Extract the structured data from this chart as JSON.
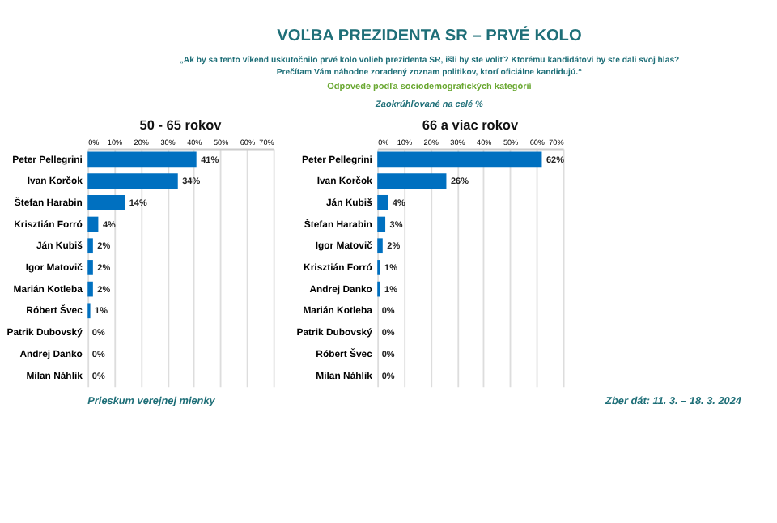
{
  "chart_data": [
    {
      "type": "bar",
      "orientation": "horizontal",
      "title": "50 - 65 rokov",
      "annotations": [
        "VOĽBA PREZIDENTA SR – PRVÉ KOLO",
        "„Ak by sa tento víkend uskutočnilo prvé kolo volieb prezidenta SR, išli by ste voliť? Ktorému kandidátovi by ste dali svoj hlas?",
        "Prečítam Vám náhodne zoradený zoznam politikov, ktorí oficiálne kandidujú.“",
        "Odpovede podľa sociodemografických kategórií",
        "Zaokrúhľované na celé %"
      ],
      "categories": [
        "Peter Pellegrini",
        "Ivan Korčok",
        "Štefan Harabin",
        "Krisztián Forró",
        "Ján Kubiš",
        "Igor Matovič",
        "Marián Kotleba",
        "Róbert Švec",
        "Patrik Dubovský",
        "Andrej Danko",
        "Milan Náhlik"
      ],
      "values": [
        41,
        34,
        14,
        4,
        2,
        2,
        2,
        1,
        0,
        0,
        0
      ],
      "value_labels": [
        "41%",
        "34%",
        "14%",
        "4%",
        "2%",
        "2%",
        "2%",
        "1%",
        "0%",
        "0%",
        "0%"
      ],
      "color": "#0070c0",
      "xlim": [
        0,
        70
      ],
      "xticks": [
        {
          "value": 0,
          "label": "0%"
        },
        {
          "value": 10,
          "label": "10%"
        },
        {
          "value": 20,
          "label": "20%"
        },
        {
          "value": 30,
          "label": "30%"
        },
        {
          "value": 40,
          "label": "40%"
        },
        {
          "value": 50,
          "label": "50%"
        },
        {
          "value": 60,
          "label": "60%"
        },
        {
          "value": 70,
          "label": "70%"
        }
      ],
      "grid": "x"
    },
    {
      "type": "bar",
      "orientation": "horizontal",
      "title": "66 a viac rokov",
      "annotations": [
        "Prieskum verejnej mienky",
        "Zber dát: 11. 3. – 18. 3. 2024"
      ],
      "categories": [
        "Peter Pellegrini",
        "Ivan Korčok",
        "Ján Kubiš",
        "Štefan Harabin",
        "Igor Matovič",
        "Krisztián Forró",
        "Andrej Danko",
        "Marián Kotleba",
        "Patrik Dubovský",
        "Róbert Švec",
        "Milan Náhlik"
      ],
      "values": [
        62,
        26,
        4,
        3,
        2,
        1,
        1,
        0,
        0,
        0,
        0
      ],
      "value_labels": [
        "62%",
        "26%",
        "4%",
        "3%",
        "2%",
        "1%",
        "1%",
        "0%",
        "0%",
        "0%",
        "0%"
      ],
      "color": "#0070c0",
      "xlim": [
        0,
        70
      ],
      "xticks": [
        {
          "value": 0,
          "label": "0%"
        },
        {
          "value": 10,
          "label": "10%"
        },
        {
          "value": 20,
          "label": "20%"
        },
        {
          "value": 30,
          "label": "30%"
        },
        {
          "value": 40,
          "label": "40%"
        },
        {
          "value": 50,
          "label": "50%"
        },
        {
          "value": 60,
          "label": "60%"
        },
        {
          "value": 70,
          "label": "70%"
        }
      ],
      "grid": "x"
    }
  ]
}
